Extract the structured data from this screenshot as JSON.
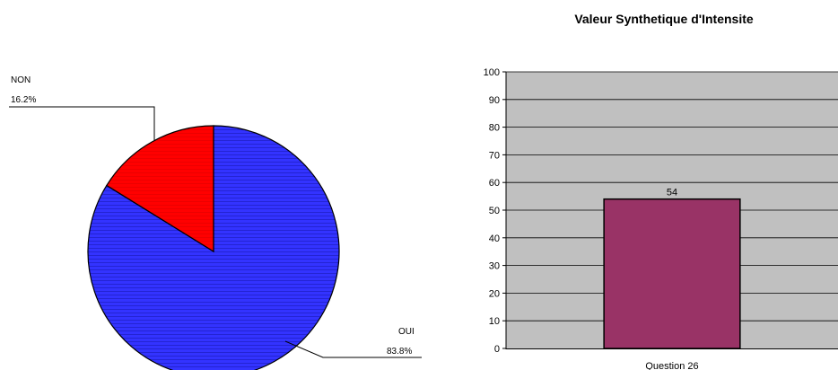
{
  "chart_data": [
    {
      "type": "pie",
      "slices": [
        {
          "label": "OUI",
          "value": 83.8,
          "value_label": "83.8%",
          "color": "#3333ff"
        },
        {
          "label": "NON",
          "value": 16.2,
          "value_label": "16.2%",
          "color": "#ff0000"
        }
      ]
    },
    {
      "type": "bar",
      "title": "Valeur Synthetique d'Intensite",
      "categories": [
        "Question 26"
      ],
      "values": [
        54
      ],
      "data_labels": [
        "54"
      ],
      "ylim": [
        0,
        100
      ],
      "yticks": [
        "0",
        "10",
        "20",
        "30",
        "40",
        "50",
        "60",
        "70",
        "80",
        "90",
        "100"
      ],
      "grid": true,
      "plot_background": "#c0c0c0",
      "bar_color": "#993366"
    }
  ]
}
